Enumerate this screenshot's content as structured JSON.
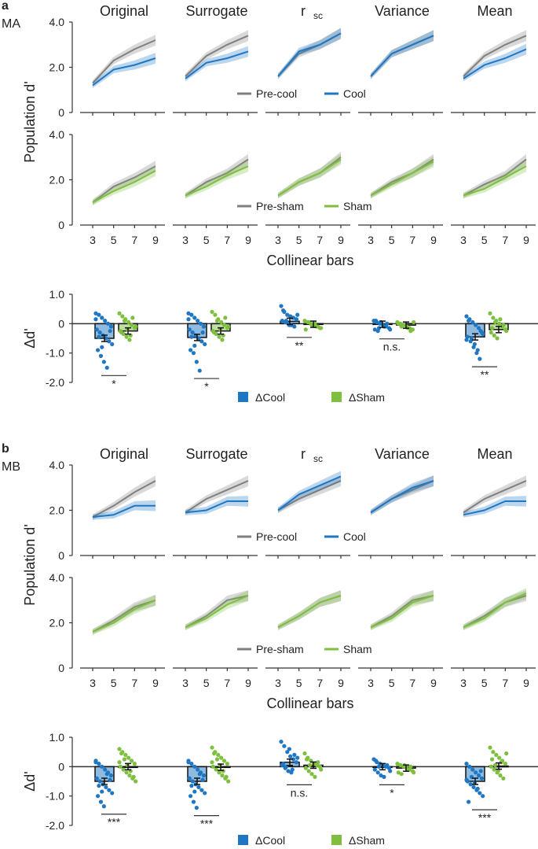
{
  "panel_a": {
    "label": "a",
    "animal": "MA",
    "column_titles": [
      "Original",
      "Surrogate",
      "r",
      "Variance",
      "Mean"
    ],
    "rsc_sub": "sc",
    "y_label": "Population d'",
    "x_label": "Collinear bars",
    "x_ticks": [
      "3",
      "5",
      "7",
      "9"
    ],
    "y_ticks": [
      "0",
      "2.0",
      "4.0"
    ],
    "legend_cool": [
      "Pre-cool",
      "Cool"
    ],
    "legend_sham": [
      "Pre-sham",
      "Sham"
    ],
    "delta_ylabel": "Δd'",
    "delta_yticks": [
      "1.0",
      "0",
      "-1.0",
      "-2.0"
    ],
    "delta_legend": [
      "ΔCool",
      "ΔSham"
    ],
    "sig": [
      "*",
      "*",
      "**",
      "n.s.",
      "**"
    ]
  },
  "panel_b": {
    "label": "b",
    "animal": "MB",
    "column_titles": [
      "Original",
      "Surrogate",
      "r",
      "Variance",
      "Mean"
    ],
    "rsc_sub": "sc",
    "y_label": "Population d'",
    "x_label": "Collinear bars",
    "x_ticks": [
      "3",
      "5",
      "7",
      "9"
    ],
    "y_ticks": [
      "0",
      "2.0",
      "4.0"
    ],
    "legend_cool": [
      "Pre-cool",
      "Cool"
    ],
    "legend_sham": [
      "Pre-sham",
      "Sham"
    ],
    "delta_ylabel": "Δd'",
    "delta_yticks": [
      "1.0",
      "0",
      "-1.0",
      "-2.0"
    ],
    "delta_legend": [
      "ΔCool",
      "ΔSham"
    ],
    "sig": [
      "***",
      "***",
      "n.s.",
      "*",
      "***"
    ]
  },
  "colors": {
    "pre": "#808080",
    "cool": "#1f77c4",
    "sham": "#7fbf3f",
    "axis": "#333333"
  },
  "chart_data": [
    {
      "type": "line",
      "title": "MA population d' (cooling)",
      "x": [
        3,
        5,
        7,
        9
      ],
      "ylim": [
        0,
        4
      ],
      "xlabel": "Collinear bars",
      "ylabel": "Population d'",
      "conditions": [
        "Original",
        "Surrogate",
        "rsc",
        "Variance",
        "Mean"
      ],
      "series": [
        {
          "name": "Pre-cool",
          "values": [
            [
              1.3,
              2.3,
              2.8,
              3.2
            ],
            [
              1.6,
              2.5,
              3.0,
              3.4
            ],
            [
              1.6,
              2.6,
              3.0,
              3.5
            ],
            [
              1.6,
              2.6,
              3.0,
              3.4
            ],
            [
              1.6,
              2.5,
              3.0,
              3.4
            ]
          ]
        },
        {
          "name": "Cool",
          "values": [
            [
              1.2,
              1.9,
              2.1,
              2.4
            ],
            [
              1.5,
              2.2,
              2.4,
              2.7
            ],
            [
              1.6,
              2.7,
              3.0,
              3.5
            ],
            [
              1.6,
              2.6,
              3.0,
              3.4
            ],
            [
              1.5,
              2.1,
              2.4,
              2.8
            ]
          ]
        }
      ]
    },
    {
      "type": "line",
      "title": "MA population d' (sham)",
      "x": [
        3,
        5,
        7,
        9
      ],
      "ylim": [
        0,
        4
      ],
      "conditions": [
        "Original",
        "Surrogate",
        "rsc",
        "Variance",
        "Mean"
      ],
      "series": [
        {
          "name": "Pre-sham",
          "values": [
            [
              1.0,
              1.7,
              2.1,
              2.6
            ],
            [
              1.3,
              1.9,
              2.3,
              2.9
            ],
            [
              1.3,
              1.9,
              2.3,
              3.0
            ],
            [
              1.3,
              1.9,
              2.3,
              2.9
            ],
            [
              1.3,
              1.8,
              2.2,
              2.9
            ]
          ]
        },
        {
          "name": "Sham",
          "values": [
            [
              1.0,
              1.5,
              1.9,
              2.4
            ],
            [
              1.3,
              1.7,
              2.2,
              2.6
            ],
            [
              1.3,
              1.9,
              2.3,
              2.9
            ],
            [
              1.3,
              1.8,
              2.3,
              2.8
            ],
            [
              1.3,
              1.6,
              2.1,
              2.6
            ]
          ]
        }
      ]
    },
    {
      "type": "bar",
      "title": "MA delta d'",
      "ylabel": "Δd'",
      "ylim": [
        -2,
        1
      ],
      "categories": [
        "Original",
        "Surrogate",
        "rsc",
        "Variance",
        "Mean"
      ],
      "series": [
        {
          "name": "ΔCool",
          "values": [
            -0.5,
            -0.47,
            0.08,
            -0.02,
            -0.45
          ],
          "points": [
            [
              0.35,
              0.3,
              0.2,
              0.1,
              0.0,
              -0.1,
              -0.2,
              -0.3,
              -0.4,
              -0.5,
              -0.6,
              -0.7,
              -0.9,
              -1.1,
              -1.3,
              -1.5,
              -0.25,
              0.15,
              -0.45,
              -0.8
            ],
            [
              0.35,
              0.3,
              0.2,
              0.1,
              0.0,
              -0.1,
              -0.2,
              -0.3,
              -0.4,
              -0.5,
              -0.6,
              -0.7,
              -0.9,
              -1.0,
              -1.3,
              -1.6,
              -0.3,
              0.15,
              -0.45,
              -0.75
            ],
            [
              0.6,
              0.4,
              0.3,
              0.25,
              0.2,
              0.15,
              0.1,
              0.05,
              0.0,
              -0.05,
              -0.1,
              0.3,
              0.45,
              0.1,
              -0.05,
              0.2
            ],
            [
              0.1,
              0.05,
              0.0,
              -0.05,
              -0.1,
              -0.15,
              -0.2,
              -0.25,
              0.05,
              -0.1,
              0.0,
              -0.2,
              0.1,
              -0.15
            ],
            [
              0.25,
              0.15,
              0.05,
              -0.05,
              -0.15,
              -0.3,
              -0.45,
              -0.6,
              -0.8,
              -1.0,
              -1.2,
              -0.35,
              0.1,
              -0.5,
              -0.7,
              -0.9,
              -0.25,
              -0.55
            ]
          ]
        },
        {
          "name": "ΔSham",
          "values": [
            -0.25,
            -0.25,
            -0.02,
            -0.05,
            -0.2
          ],
          "points": [
            [
              0.35,
              0.25,
              0.15,
              0.05,
              -0.05,
              -0.15,
              -0.25,
              -0.35,
              -0.45,
              -0.55,
              0.2,
              -0.1,
              -0.3,
              0.1,
              -0.2,
              -0.4
            ],
            [
              0.4,
              0.3,
              0.15,
              0.05,
              -0.05,
              -0.15,
              -0.25,
              -0.35,
              -0.45,
              -0.55,
              0.2,
              -0.1,
              -0.3,
              0.1,
              -0.2,
              -0.4
            ],
            [
              0.1,
              0.05,
              0.0,
              -0.05,
              -0.1,
              -0.15,
              -0.2,
              0.05,
              -0.05,
              0.0,
              -0.1,
              -0.15
            ],
            [
              0.05,
              0.0,
              -0.05,
              -0.1,
              -0.15,
              -0.2,
              0.0,
              -0.1,
              -0.05,
              -0.15,
              -0.25,
              0.05
            ],
            [
              0.35,
              0.2,
              0.1,
              0.0,
              -0.1,
              -0.2,
              -0.3,
              -0.4,
              -0.5,
              0.15,
              -0.05,
              -0.25,
              -0.15,
              0.05
            ]
          ]
        }
      ],
      "significance": [
        "*",
        "*",
        "**",
        "n.s.",
        "**"
      ]
    },
    {
      "type": "line",
      "title": "MB population d' (cooling)",
      "x": [
        3,
        5,
        7,
        9
      ],
      "ylim": [
        0,
        4
      ],
      "conditions": [
        "Original",
        "Surrogate",
        "rsc",
        "Variance",
        "Mean"
      ],
      "series": [
        {
          "name": "Pre-cool",
          "values": [
            [
              1.7,
              2.2,
              2.8,
              3.3
            ],
            [
              1.9,
              2.5,
              2.9,
              3.3
            ],
            [
              2.0,
              2.5,
              2.9,
              3.3
            ],
            [
              1.9,
              2.5,
              2.9,
              3.3
            ],
            [
              1.9,
              2.5,
              2.9,
              3.3
            ]
          ]
        },
        {
          "name": "Cool",
          "values": [
            [
              1.7,
              1.8,
              2.2,
              2.2
            ],
            [
              1.9,
              2.0,
              2.4,
              2.4
            ],
            [
              2.0,
              2.7,
              3.1,
              3.5
            ],
            [
              1.9,
              2.5,
              3.0,
              3.3
            ],
            [
              1.8,
              2.0,
              2.4,
              2.4
            ]
          ]
        }
      ]
    },
    {
      "type": "line",
      "title": "MB population d' (sham)",
      "x": [
        3,
        5,
        7,
        9
      ],
      "ylim": [
        0,
        4
      ],
      "conditions": [
        "Original",
        "Surrogate",
        "rsc",
        "Variance",
        "Mean"
      ],
      "series": [
        {
          "name": "Pre-sham",
          "values": [
            [
              1.6,
              2.1,
              2.7,
              3.0
            ],
            [
              1.8,
              2.3,
              3.0,
              3.2
            ],
            [
              1.8,
              2.3,
              2.9,
              3.2
            ],
            [
              1.8,
              2.3,
              3.0,
              3.2
            ],
            [
              1.8,
              2.3,
              2.9,
              3.2
            ]
          ]
        },
        {
          "name": "Sham",
          "values": [
            [
              1.6,
              2.0,
              2.6,
              3.0
            ],
            [
              1.8,
              2.2,
              2.8,
              3.2
            ],
            [
              1.8,
              2.3,
              2.9,
              3.2
            ],
            [
              1.8,
              2.2,
              2.9,
              3.2
            ],
            [
              1.8,
              2.2,
              2.9,
              3.3
            ]
          ]
        }
      ]
    },
    {
      "type": "bar",
      "title": "MB delta d'",
      "ylabel": "Δd'",
      "ylim": [
        -2,
        1
      ],
      "categories": [
        "Original",
        "Surrogate",
        "rsc",
        "Variance",
        "Mean"
      ],
      "series": [
        {
          "name": "ΔCool",
          "values": [
            -0.5,
            -0.5,
            0.15,
            0.0,
            -0.5
          ],
          "points": [
            [
              0.2,
              0.1,
              0.0,
              -0.1,
              -0.2,
              -0.3,
              -0.4,
              -0.5,
              -0.6,
              -0.7,
              -0.8,
              -0.9,
              -1.0,
              -1.2,
              -1.35,
              -0.25,
              -0.45,
              0.15,
              -0.65,
              -0.85
            ],
            [
              0.2,
              0.1,
              0.0,
              -0.1,
              -0.2,
              -0.3,
              -0.4,
              -0.5,
              -0.6,
              -0.7,
              -0.8,
              -0.9,
              -1.0,
              -1.2,
              -1.4,
              -0.25,
              -0.45,
              0.15,
              -0.65,
              -0.85
            ],
            [
              0.85,
              0.7,
              0.5,
              0.35,
              0.25,
              0.15,
              0.05,
              -0.05,
              -0.15,
              -0.2,
              0.4,
              0.3,
              0.1,
              0.0,
              0.6,
              -0.1
            ],
            [
              0.25,
              0.15,
              0.1,
              0.05,
              0.0,
              -0.05,
              -0.1,
              -0.2,
              -0.3,
              -0.35,
              0.05,
              -0.15,
              0.2,
              0.0
            ],
            [
              0.1,
              0.0,
              -0.1,
              -0.2,
              -0.3,
              -0.4,
              -0.5,
              -0.6,
              -0.7,
              -0.8,
              -0.9,
              -1.0,
              -1.2,
              -0.35,
              -0.55,
              -0.75,
              -0.15,
              -0.45
            ]
          ]
        },
        {
          "name": "ΔSham",
          "values": [
            0.0,
            -0.02,
            0.05,
            -0.05,
            0.02
          ],
          "points": [
            [
              0.6,
              0.5,
              0.4,
              0.3,
              0.2,
              0.1,
              0.0,
              -0.1,
              -0.2,
              -0.3,
              -0.4,
              -0.5,
              0.45,
              0.25,
              0.05,
              -0.15,
              -0.35,
              0.15
            ],
            [
              0.65,
              0.5,
              0.4,
              0.3,
              0.2,
              0.1,
              0.0,
              -0.1,
              -0.2,
              -0.3,
              -0.4,
              -0.5,
              0.45,
              0.25,
              0.05,
              -0.15,
              -0.35,
              0.15
            ],
            [
              0.45,
              0.3,
              0.2,
              0.1,
              0.05,
              0.0,
              -0.05,
              -0.15,
              -0.25,
              -0.35,
              0.15,
              -0.1,
              0.25,
              0.05
            ],
            [
              0.1,
              0.05,
              0.0,
              -0.05,
              -0.1,
              -0.15,
              -0.2,
              -0.25,
              0.05,
              -0.1,
              0.0,
              -0.2
            ],
            [
              0.65,
              0.5,
              0.4,
              0.3,
              0.2,
              0.1,
              0.0,
              -0.1,
              -0.2,
              -0.3,
              -0.4,
              0.45,
              0.25,
              0.05,
              -0.15,
              0.15
            ]
          ]
        }
      ],
      "significance": [
        "***",
        "***",
        "n.s.",
        "*",
        "***"
      ]
    }
  ]
}
